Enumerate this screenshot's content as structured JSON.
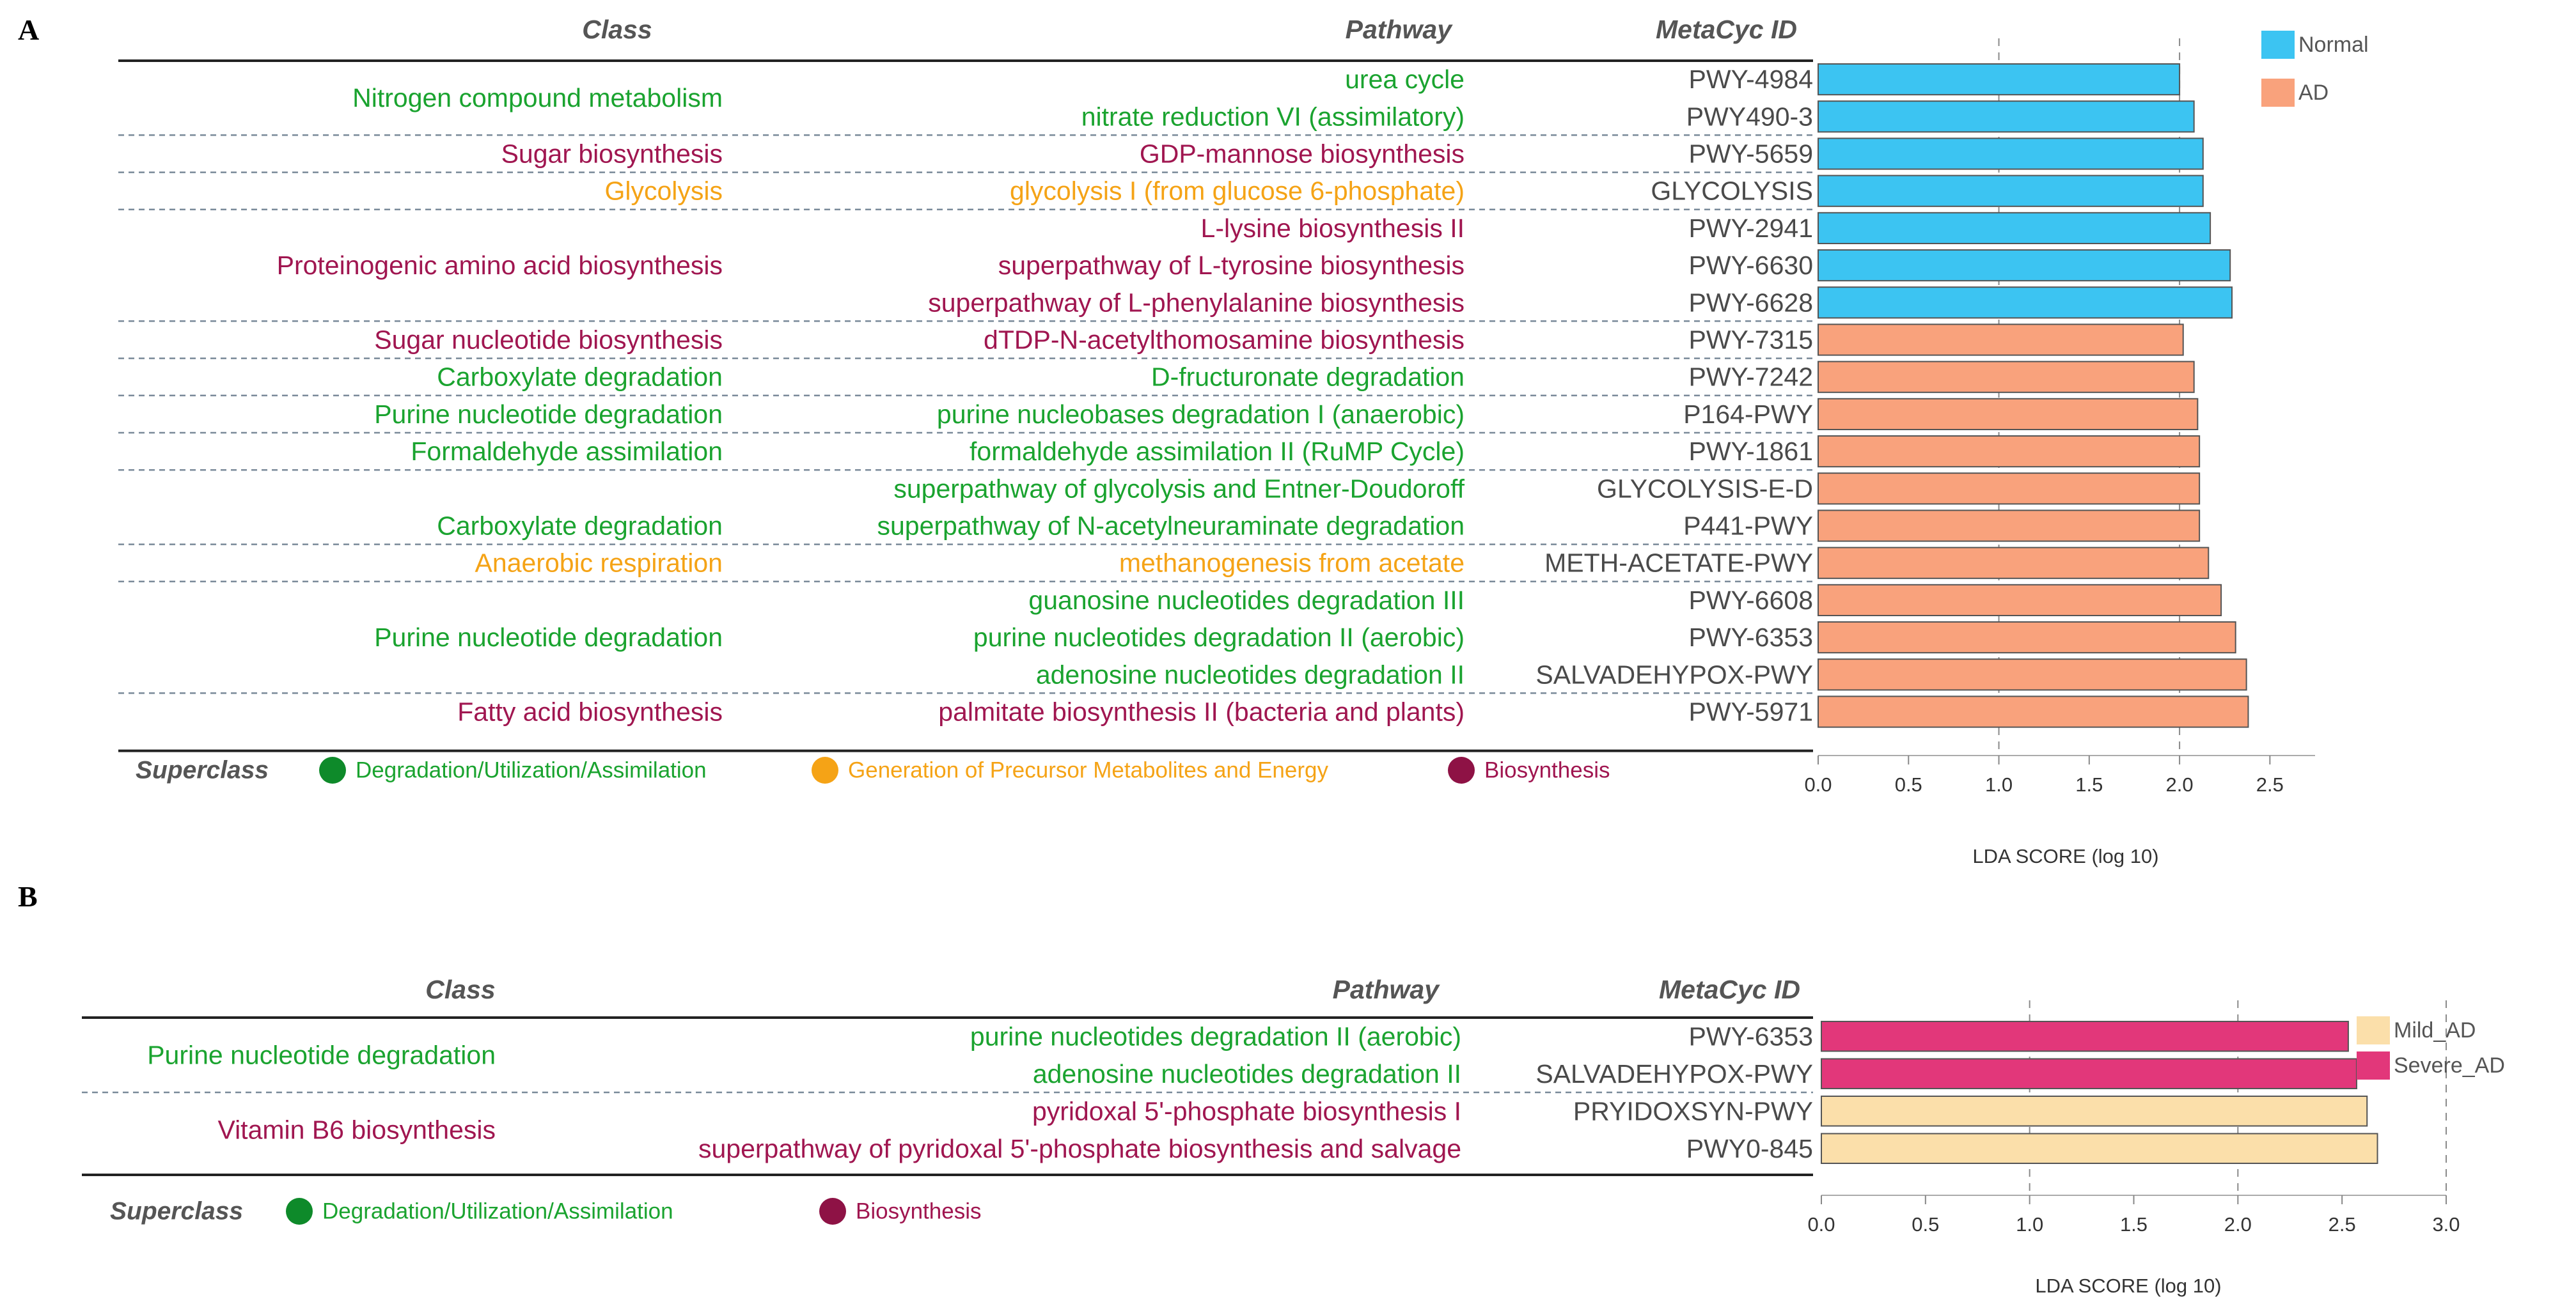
{
  "colors": {
    "green": "#1aa32f",
    "orange": "#f5a316",
    "maroon": "#a01650",
    "gray_text": "#4a4a4a",
    "dark_header": "#555555",
    "normal": "#3cc4f2",
    "ad": "#f9a27c",
    "mild_ad": "#fbdfaa",
    "severe_ad": "#e2377a",
    "dot_green": "#0e8a2a",
    "dot_orange": "#f5a316",
    "dot_maroon": "#8e1245",
    "bar_edge": "#555555"
  },
  "panel_a": {
    "label": "A",
    "header": {
      "class": "Class",
      "pathway": "Pathway",
      "id": "MetaCyc ID"
    },
    "rows": [
      {
        "pathway": "urea cycle",
        "id": "PWY-4984",
        "color": "green"
      },
      {
        "pathway": "nitrate reduction VI (assimilatory)",
        "id": "PWY490-3",
        "color": "green"
      },
      {
        "pathway": "GDP-mannose biosynthesis",
        "id": "PWY-5659",
        "color": "maroon"
      },
      {
        "pathway": "glycolysis I (from glucose 6-phosphate)",
        "id": "GLYCOLYSIS",
        "color": "orange"
      },
      {
        "pathway": "L-lysine biosynthesis II",
        "id": "PWY-2941",
        "color": "maroon"
      },
      {
        "pathway": "superpathway of L-tyrosine biosynthesis",
        "id": "PWY-6630",
        "color": "maroon"
      },
      {
        "pathway": "superpathway of L-phenylalanine biosynthesis",
        "id": "PWY-6628",
        "color": "maroon"
      },
      {
        "pathway": "dTDP-N-acetylthomosamine biosynthesis",
        "id": "PWY-7315",
        "color": "maroon"
      },
      {
        "pathway": "D-fructuronate degradation",
        "id": "PWY-7242",
        "color": "green"
      },
      {
        "pathway": "purine nucleobases degradation I (anaerobic)",
        "id": "P164-PWY",
        "color": "green"
      },
      {
        "pathway": "formaldehyde assimilation II (RuMP Cycle)",
        "id": "PWY-1861",
        "color": "green"
      },
      {
        "pathway": "superpathway of glycolysis and Entner-Doudoroff",
        "id": "GLYCOLYSIS-E-D",
        "color": "green"
      },
      {
        "pathway": "superpathway of N-acetylneuraminate degradation",
        "id": "P441-PWY",
        "color": "green"
      },
      {
        "pathway": "methanogenesis from acetate",
        "id": "METH-ACETATE-PWY",
        "color": "orange"
      },
      {
        "pathway": "guanosine nucleotides degradation III",
        "id": "PWY-6608",
        "color": "green"
      },
      {
        "pathway": "purine nucleotides degradation II (aerobic)",
        "id": "PWY-6353",
        "color": "green"
      },
      {
        "pathway": "adenosine nucleotides degradation II",
        "id": "SALVADEHYPOX-PWY",
        "color": "green"
      },
      {
        "pathway": "palmitate biosynthesis II (bacteria and plants)",
        "id": "PWY-5971",
        "color": "maroon"
      }
    ],
    "classes": [
      {
        "label": "Nitrogen compound metabolism",
        "rows": [
          0,
          1
        ],
        "color": "green"
      },
      {
        "label": "Sugar biosynthesis",
        "rows": [
          2,
          2
        ],
        "color": "maroon"
      },
      {
        "label": "Glycolysis",
        "rows": [
          3,
          3
        ],
        "color": "orange"
      },
      {
        "label": "Proteinogenic amino acid biosynthesis",
        "rows": [
          4,
          6
        ],
        "color": "maroon"
      },
      {
        "label": "Sugar nucleotide biosynthesis",
        "rows": [
          7,
          7
        ],
        "color": "maroon"
      },
      {
        "label": "Carboxylate degradation",
        "rows": [
          8,
          8
        ],
        "color": "green"
      },
      {
        "label": "Purine nucleotide degradation",
        "rows": [
          9,
          9
        ],
        "color": "green"
      },
      {
        "label": "Formaldehyde assimilation",
        "rows": [
          10,
          10
        ],
        "color": "green"
      },
      {
        "label": "Carboxylate degradation",
        "rows": [
          11,
          12
        ],
        "color": "green",
        "align": "bottom"
      },
      {
        "label": "Anaerobic respiration",
        "rows": [
          13,
          13
        ],
        "color": "orange"
      },
      {
        "label": "Purine nucleotide degradation",
        "rows": [
          14,
          16
        ],
        "color": "green"
      },
      {
        "label": "Fatty acid biosynthesis",
        "rows": [
          17,
          17
        ],
        "color": "maroon"
      }
    ],
    "separators_after": [
      1,
      2,
      3,
      6,
      7,
      8,
      9,
      10,
      12,
      13,
      16
    ],
    "superclass": {
      "title": "Superclass",
      "items": [
        {
          "label": "Degradation/Utilization/Assimilation",
          "dot": "dot_green",
          "color": "green"
        },
        {
          "label": "Generation of Precursor Metabolites and Energy",
          "dot": "dot_orange",
          "color": "orange"
        },
        {
          "label": "Biosynthesis",
          "dot": "dot_maroon",
          "color": "maroon"
        }
      ]
    }
  },
  "panel_b": {
    "label": "B",
    "header": {
      "class": "Class",
      "pathway": "Pathway",
      "id": "MetaCyc ID"
    },
    "rows": [
      {
        "pathway": "purine nucleotides degradation II (aerobic)",
        "id": "PWY-6353",
        "color": "green"
      },
      {
        "pathway": "adenosine nucleotides degradation II",
        "id": "SALVADEHYPOX-PWY",
        "color": "green"
      },
      {
        "pathway": "pyridoxal 5'-phosphate biosynthesis I",
        "id": "PRYIDOXSYN-PWY",
        "color": "maroon"
      },
      {
        "pathway": "superpathway of pyridoxal 5'-phosphate biosynthesis and salvage",
        "id": "PWY0-845",
        "color": "maroon"
      }
    ],
    "classes": [
      {
        "label": "Purine nucleotide degradation",
        "rows": [
          0,
          1
        ],
        "color": "green"
      },
      {
        "label": "Vitamin B6 biosynthesis",
        "rows": [
          2,
          3
        ],
        "color": "maroon"
      }
    ],
    "separators_after": [
      1
    ],
    "superclass": {
      "title": "Superclass",
      "items": [
        {
          "label": "Degradation/Utilization/Assimilation",
          "dot": "dot_green",
          "color": "green"
        },
        {
          "label": "Biosynthesis",
          "dot": "dot_maroon",
          "color": "maroon"
        }
      ]
    }
  },
  "chart_data": [
    {
      "type": "bar",
      "orientation": "horizontal",
      "panel": "A",
      "title": "",
      "xlabel": "LDA SCORE (log 10)",
      "ylabel": "",
      "xlim": [
        0,
        2.75
      ],
      "xticks": [
        "0.0",
        "0.5",
        "1.0",
        "1.5",
        "2.0",
        "2.5"
      ],
      "gridlines": [
        1.0,
        2.0
      ],
      "categories": [
        "PWY-4984",
        "PWY490-3",
        "PWY-5659",
        "GLYCOLYSIS",
        "PWY-2941",
        "PWY-6630",
        "PWY-6628",
        "PWY-7315",
        "PWY-7242",
        "P164-PWY",
        "PWY-1861",
        "GLYCOLYSIS-E-D",
        "P441-PWY",
        "METH-ACETATE-PWY",
        "PWY-6608",
        "PWY-6353",
        "SALVADEHYPOX-PWY",
        "PWY-5971"
      ],
      "values": [
        2.0,
        2.08,
        2.13,
        2.13,
        2.17,
        2.28,
        2.29,
        2.02,
        2.08,
        2.1,
        2.11,
        2.11,
        2.11,
        2.16,
        2.23,
        2.31,
        2.37,
        2.38
      ],
      "groups": [
        "Normal",
        "Normal",
        "Normal",
        "Normal",
        "Normal",
        "Normal",
        "Normal",
        "AD",
        "AD",
        "AD",
        "AD",
        "AD",
        "AD",
        "AD",
        "AD",
        "AD",
        "AD",
        "AD"
      ],
      "legend": [
        {
          "name": "Normal",
          "color": "normal"
        },
        {
          "name": "AD",
          "color": "ad"
        }
      ],
      "legend_position": "top-right"
    },
    {
      "type": "bar",
      "orientation": "horizontal",
      "panel": "B",
      "title": "",
      "xlabel": "LDA SCORE (log 10)",
      "ylabel": "",
      "xlim": [
        0,
        3.0
      ],
      "xticks": [
        "0.0",
        "0.5",
        "1.0",
        "1.5",
        "2.0",
        "2.5",
        "3.0"
      ],
      "gridlines": [
        1.0,
        2.0,
        3.0
      ],
      "categories": [
        "PWY-6353",
        "SALVADEHYPOX-PWY",
        "PRYIDOXSYN-PWY",
        "PWY0-845"
      ],
      "values": [
        2.53,
        2.57,
        2.62,
        2.67
      ],
      "groups": [
        "Severe_AD",
        "Severe_AD",
        "Mild_AD",
        "Mild_AD"
      ],
      "legend": [
        {
          "name": "Mild_AD",
          "color": "mild_ad"
        },
        {
          "name": "Severe_AD",
          "color": "severe_ad"
        }
      ],
      "legend_position": "top-right"
    }
  ]
}
